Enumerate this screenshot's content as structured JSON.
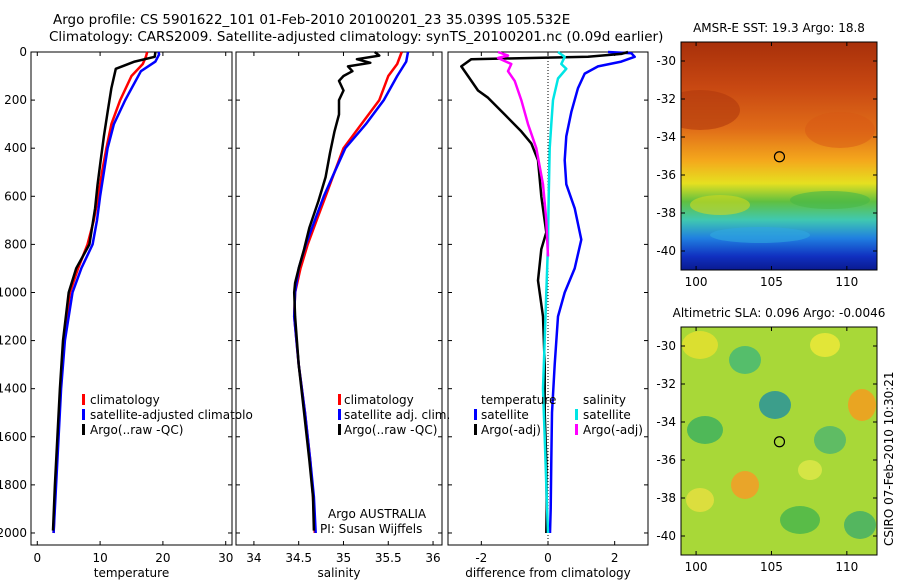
{
  "header": {
    "line1": "Argo profile: CS 5901622_101 01-Feb-2010 20100201_23 35.039S 105.532E",
    "line2": "Climatology: CARS2009. Satellite-adjusted climatology: synTS_20100201.nc (0.09d earlier)"
  },
  "colors": {
    "climatology": "#ff0000",
    "satellite": "#0000ff",
    "argo": "#000000",
    "satellite_diff_salinity": "#00e5e5",
    "argo_diff_salinity": "#ff00ff"
  },
  "chart_data": [
    {
      "type": "line",
      "id": "temperature",
      "xlabel": "temperature",
      "xlim": [
        -1,
        31
      ],
      "xticks": [
        0,
        10,
        20,
        30
      ],
      "ylim": [
        2050,
        0
      ],
      "yticks": [
        0,
        200,
        400,
        600,
        800,
        1000,
        1200,
        1400,
        1600,
        1800,
        2000
      ],
      "legend": [
        "climatology",
        "satellite-adjusted climatolo",
        "Argo(..raw -QC)"
      ],
      "series": [
        {
          "name": "climatology",
          "color": "#ff0000",
          "points": [
            [
              17.5,
              0
            ],
            [
              17.3,
              20
            ],
            [
              16.8,
              50
            ],
            [
              15,
              100
            ],
            [
              13.2,
              200
            ],
            [
              11.8,
              300
            ],
            [
              11,
              400
            ],
            [
              10.3,
              500
            ],
            [
              9.7,
              600
            ],
            [
              9,
              700
            ],
            [
              8,
              800
            ],
            [
              6.5,
              900
            ],
            [
              5.2,
              1000
            ],
            [
              4.2,
              1200
            ],
            [
              3.7,
              1400
            ],
            [
              3.3,
              1600
            ],
            [
              2.9,
              1800
            ],
            [
              2.6,
              2000
            ]
          ]
        },
        {
          "name": "satellite",
          "color": "#0000ff",
          "points": [
            [
              19.3,
              0
            ],
            [
              19.4,
              10
            ],
            [
              18.8,
              40
            ],
            [
              16.5,
              80
            ],
            [
              14,
              200
            ],
            [
              12.2,
              300
            ],
            [
              11.2,
              400
            ],
            [
              10.6,
              500
            ],
            [
              10,
              600
            ],
            [
              9.5,
              700
            ],
            [
              8.8,
              800
            ],
            [
              7,
              900
            ],
            [
              5.6,
              1000
            ],
            [
              4.4,
              1200
            ],
            [
              3.8,
              1400
            ],
            [
              3.4,
              1600
            ],
            [
              3,
              1800
            ],
            [
              2.6,
              2000
            ]
          ]
        },
        {
          "name": "argo",
          "color": "#000000",
          "points": [
            [
              18.8,
              0
            ],
            [
              18.7,
              20
            ],
            [
              15.5,
              40
            ],
            [
              12.5,
              70
            ],
            [
              11.8,
              150
            ],
            [
              11.2,
              250
            ],
            [
              10.6,
              350
            ],
            [
              10.1,
              450
            ],
            [
              9.6,
              550
            ],
            [
              9.2,
              650
            ],
            [
              8.3,
              800
            ],
            [
              6.2,
              900
            ],
            [
              5,
              1000
            ],
            [
              4.1,
              1200
            ],
            [
              3.6,
              1400
            ],
            [
              3.2,
              1600
            ],
            [
              2.8,
              1800
            ],
            [
              2.5,
              1990
            ]
          ]
        }
      ]
    },
    {
      "type": "line",
      "id": "salinity",
      "xlabel": "salinity",
      "xlim": [
        33.8,
        36.1
      ],
      "xticks": [
        34,
        34.5,
        35,
        35.5,
        36
      ],
      "xtick_labels": [
        "34",
        "34.5",
        "35",
        "35.5",
        "36"
      ],
      "ylim": [
        2050,
        0
      ],
      "legend": [
        "climatology",
        "satellite adj. clim.",
        "Argo(..raw -QC)"
      ],
      "annotations": [
        "Argo AUSTRALIA",
        "PI: Susan Wijffels"
      ],
      "series": [
        {
          "name": "climatology",
          "color": "#ff0000",
          "points": [
            [
              35.65,
              0
            ],
            [
              35.6,
              50
            ],
            [
              35.5,
              100
            ],
            [
              35.4,
              200
            ],
            [
              35.2,
              300
            ],
            [
              35,
              400
            ],
            [
              34.9,
              500
            ],
            [
              34.8,
              600
            ],
            [
              34.7,
              700
            ],
            [
              34.6,
              800
            ],
            [
              34.52,
              900
            ],
            [
              34.46,
              1000
            ],
            [
              34.45,
              1100
            ],
            [
              34.5,
              1300
            ],
            [
              34.57,
              1500
            ],
            [
              34.63,
              1700
            ],
            [
              34.66,
              1850
            ],
            [
              34.68,
              2000
            ]
          ]
        },
        {
          "name": "satellite",
          "color": "#0000ff",
          "points": [
            [
              35.72,
              0
            ],
            [
              35.7,
              40
            ],
            [
              35.6,
              100
            ],
            [
              35.45,
              200
            ],
            [
              35.25,
              300
            ],
            [
              35.02,
              400
            ],
            [
              34.9,
              500
            ],
            [
              34.78,
              600
            ],
            [
              34.68,
              700
            ],
            [
              34.58,
              800
            ],
            [
              34.5,
              900
            ],
            [
              34.46,
              1000
            ],
            [
              34.45,
              1100
            ],
            [
              34.5,
              1300
            ],
            [
              34.57,
              1500
            ],
            [
              34.63,
              1700
            ],
            [
              34.67,
              1850
            ],
            [
              34.69,
              2000
            ]
          ]
        },
        {
          "name": "argo",
          "color": "#000000",
          "points": [
            [
              35.35,
              0
            ],
            [
              35.4,
              15
            ],
            [
              35.15,
              30
            ],
            [
              35.3,
              45
            ],
            [
              35.05,
              60
            ],
            [
              35.1,
              80
            ],
            [
              35,
              100
            ],
            [
              34.95,
              120
            ],
            [
              35,
              160
            ],
            [
              34.95,
              200
            ],
            [
              34.95,
              260
            ],
            [
              34.9,
              330
            ],
            [
              34.85,
              420
            ],
            [
              34.8,
              520
            ],
            [
              34.72,
              620
            ],
            [
              34.62,
              730
            ],
            [
              34.56,
              820
            ],
            [
              34.5,
              900
            ],
            [
              34.46,
              960
            ],
            [
              34.45,
              1000
            ],
            [
              34.46,
              1100
            ],
            [
              34.5,
              1300
            ],
            [
              34.56,
              1500
            ],
            [
              34.62,
              1700
            ],
            [
              34.66,
              1850
            ],
            [
              34.67,
              1990
            ]
          ]
        }
      ]
    },
    {
      "type": "line",
      "id": "difference",
      "xlabel": "difference from climatology",
      "xlim": [
        -3,
        3
      ],
      "xticks": [
        -2,
        0,
        2
      ],
      "ylim": [
        2050,
        0
      ],
      "legend_titles": [
        "temperature",
        "salinity"
      ],
      "legend_temperature": [
        "satellite",
        "Argo(-adj)"
      ],
      "legend_salinity": [
        "satellite",
        "Argo(-adj)"
      ],
      "series": [
        {
          "name": "temperature satellite",
          "color": "#0000ff",
          "points": [
            [
              1.8,
              0
            ],
            [
              2.5,
              5
            ],
            [
              2.6,
              20
            ],
            [
              2.2,
              40
            ],
            [
              1.5,
              60
            ],
            [
              1.1,
              90
            ],
            [
              0.9,
              150
            ],
            [
              0.7,
              250
            ],
            [
              0.55,
              350
            ],
            [
              0.5,
              450
            ],
            [
              0.55,
              550
            ],
            [
              0.8,
              650
            ],
            [
              1.0,
              780
            ],
            [
              0.8,
              900
            ],
            [
              0.5,
              1000
            ],
            [
              0.3,
              1100
            ],
            [
              0.2,
              1300
            ],
            [
              0.12,
              1500
            ],
            [
              0.1,
              1700
            ],
            [
              0.08,
              1900
            ],
            [
              0.06,
              2000
            ]
          ]
        },
        {
          "name": "temperature Argo(-adj)",
          "color": "#000000",
          "points": [
            [
              2.4,
              0
            ],
            [
              2.2,
              8
            ],
            [
              1.2,
              20
            ],
            [
              -2.3,
              30
            ],
            [
              -2.6,
              60
            ],
            [
              -2.4,
              100
            ],
            [
              -2.1,
              160
            ],
            [
              -1.8,
              190
            ],
            [
              -1.3,
              260
            ],
            [
              -0.8,
              330
            ],
            [
              -0.5,
              380
            ],
            [
              -0.3,
              450
            ],
            [
              -0.2,
              600
            ],
            [
              -0.05,
              750
            ],
            [
              -0.2,
              820
            ],
            [
              -0.3,
              950
            ],
            [
              -0.15,
              1100
            ],
            [
              -0.1,
              1300
            ],
            [
              -0.1,
              1500
            ],
            [
              -0.05,
              1700
            ],
            [
              -0.04,
              1900
            ],
            [
              -0.05,
              2000
            ]
          ]
        },
        {
          "name": "salinity satellite",
          "color": "#00e5e5",
          "points": [
            [
              0.3,
              0
            ],
            [
              0.5,
              20
            ],
            [
              0.4,
              50
            ],
            [
              0.55,
              70
            ],
            [
              0.3,
              110
            ],
            [
              0.15,
              200
            ],
            [
              0.1,
              300
            ],
            [
              0.05,
              400
            ],
            [
              0.02,
              600
            ],
            [
              0,
              800
            ],
            [
              -0.05,
              1000
            ],
            [
              -0.1,
              1200
            ],
            [
              -0.15,
              1400
            ],
            [
              -0.1,
              1600
            ],
            [
              -0.05,
              1800
            ],
            [
              0,
              2000
            ]
          ]
        },
        {
          "name": "salinity Argo(-adj)",
          "color": "#ff00ff",
          "points": [
            [
              -1.5,
              0
            ],
            [
              -1.2,
              15
            ],
            [
              -1.5,
              25
            ],
            [
              -1.1,
              50
            ],
            [
              -1.2,
              80
            ],
            [
              -1.0,
              120
            ],
            [
              -0.8,
              200
            ],
            [
              -0.6,
              300
            ],
            [
              -0.35,
              400
            ],
            [
              -0.15,
              550
            ],
            [
              -0.05,
              700
            ],
            [
              0,
              850
            ]
          ]
        }
      ]
    },
    {
      "type": "heatmap",
      "id": "sst-map",
      "title": "AMSR-E SST: 19.3 Argo: 18.8",
      "xlim": [
        99,
        112
      ],
      "ylim": [
        -41,
        -29
      ],
      "xticks": [
        100,
        105,
        110
      ],
      "yticks": [
        -30,
        -32,
        -34,
        -36,
        -38,
        -40
      ],
      "marker": {
        "lon": 105.53,
        "lat": -35.04
      }
    },
    {
      "type": "heatmap",
      "id": "sla-map",
      "title": "Altimetric SLA: 0.096 Argo: -0.0046",
      "xlim": [
        99,
        112
      ],
      "ylim": [
        -41,
        -29
      ],
      "xticks": [
        100,
        105,
        110
      ],
      "yticks": [
        -30,
        -32,
        -34,
        -36,
        -38,
        -40
      ],
      "marker": {
        "lon": 105.53,
        "lat": -35.04
      }
    }
  ],
  "footer": {
    "credit": "CSIRO 07-Feb-2010 10:30:21"
  }
}
